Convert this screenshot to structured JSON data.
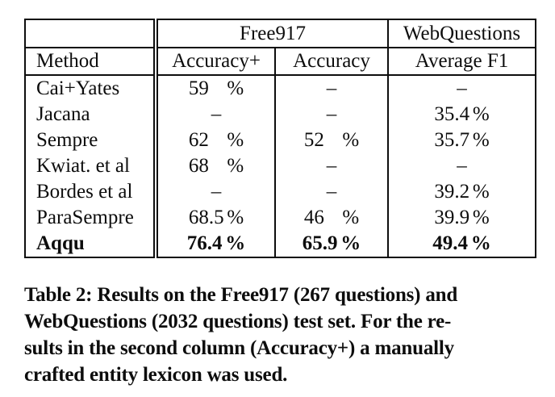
{
  "document": {
    "table": {
      "header": {
        "free917": "Free917",
        "webquestions": "WebQuestions",
        "method": "Method",
        "accuracy_plus": "Accuracy+",
        "accuracy": "Accuracy",
        "average_f1": "Average F1"
      },
      "rows": [
        {
          "method": "Cai+Yates",
          "acc_plus": {
            "int": "59",
            "dec": "",
            "unit": "%"
          },
          "acc": {
            "dash": "–"
          },
          "f1": {
            "dash": "–"
          }
        },
        {
          "method": "Jacana",
          "acc_plus": {
            "dash": "–"
          },
          "acc": {
            "dash": "–"
          },
          "f1": {
            "int": "35",
            "dec": ".4",
            "unit": "%"
          }
        },
        {
          "method": "Sempre",
          "acc_plus": {
            "int": "62",
            "dec": "",
            "unit": "%"
          },
          "acc": {
            "int": "52",
            "dec": "",
            "unit": "%"
          },
          "f1": {
            "int": "35",
            "dec": ".7",
            "unit": "%"
          }
        },
        {
          "method": "Kwiat. et al",
          "acc_plus": {
            "int": "68",
            "dec": "",
            "unit": "%"
          },
          "acc": {
            "dash": "–"
          },
          "f1": {
            "dash": "–"
          }
        },
        {
          "method": "Bordes et al",
          "acc_plus": {
            "dash": "–"
          },
          "acc": {
            "dash": "–"
          },
          "f1": {
            "int": "39",
            "dec": ".2",
            "unit": "%"
          }
        },
        {
          "method": "ParaSempre",
          "acc_plus": {
            "int": "68",
            "dec": ".5",
            "unit": "%"
          },
          "acc": {
            "int": "46",
            "dec": "",
            "unit": "%"
          },
          "f1": {
            "int": "39",
            "dec": ".9",
            "unit": "%"
          }
        },
        {
          "method": "Aqqu",
          "acc_plus": {
            "int": "76",
            "dec": ".4",
            "unit": "%"
          },
          "acc": {
            "int": "65",
            "dec": ".9",
            "unit": "%"
          },
          "f1": {
            "int": "49",
            "dec": ".4",
            "unit": "%"
          }
        }
      ]
    },
    "caption": {
      "lines": [
        "Table 2: Results on the Free917 (267 questions) and",
        "WebQuestions (2032 questions) test set. For the re-",
        "sults in the second column (Accuracy+) a manually",
        "crafted entity lexicon was used."
      ]
    }
  }
}
